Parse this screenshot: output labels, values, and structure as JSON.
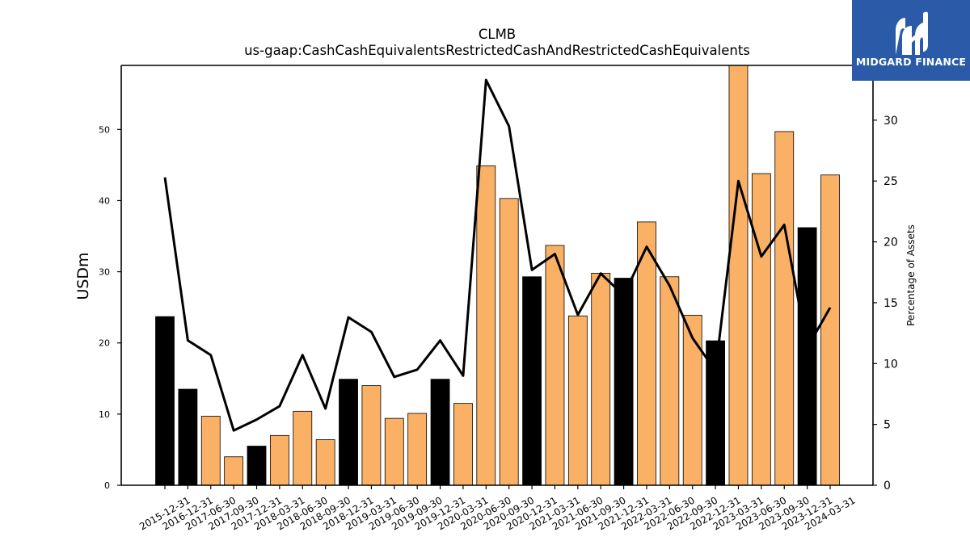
{
  "chart_data": {
    "type": "bar",
    "title": "CLMB",
    "subtitle": "us-gaap:CashCashEquivalentsRestrictedCashAndRestrictedCashEquivalents",
    "ylabel": "USDm",
    "y2label": "Percentage of Assets",
    "ylim": [
      0,
      59
    ],
    "y2lim": [
      0,
      34.5
    ],
    "yticks": [
      0,
      10,
      20,
      30,
      40,
      50
    ],
    "y2ticks": [
      0,
      5,
      10,
      15,
      20,
      25,
      30
    ],
    "categories": [
      "2015-12-31",
      "2016-12-31",
      "2017-06-30",
      "2017-09-30",
      "2017-12-31",
      "2018-03-31",
      "2018-06-30",
      "2018-09-30",
      "2018-12-31",
      "2019-03-31",
      "2019-06-30",
      "2019-09-30",
      "2019-12-31",
      "2020-03-31",
      "2020-06-30",
      "2020-09-30",
      "2020-12-31",
      "2021-03-31",
      "2021-06-30",
      "2021-09-30",
      "2021-12-31",
      "2022-03-31",
      "2022-06-30",
      "2022-09-30",
      "2022-12-31",
      "2023-03-31",
      "2023-06-30",
      "2023-09-30",
      "2023-12-31",
      "2024-03-31"
    ],
    "series": [
      {
        "role": "bars",
        "values": [
          23.7,
          13.5,
          9.7,
          4.0,
          5.5,
          7.0,
          10.4,
          6.4,
          14.9,
          14.0,
          9.4,
          10.1,
          14.9,
          11.5,
          44.9,
          40.3,
          29.3,
          33.7,
          23.8,
          29.8,
          29.1,
          37.0,
          29.3,
          23.9,
          20.3,
          59.0,
          43.8,
          49.7,
          36.2,
          43.6
        ]
      },
      {
        "role": "line",
        "axis": "right",
        "values": [
          25.3,
          11.9,
          10.7,
          4.5,
          5.4,
          6.5,
          10.7,
          6.3,
          13.8,
          12.6,
          8.9,
          9.5,
          11.9,
          9.0,
          33.3,
          29.5,
          17.7,
          19.0,
          14.0,
          17.4,
          15.6,
          19.6,
          16.4,
          12.1,
          9.4,
          25.0,
          18.8,
          21.4,
          11.3,
          14.6
        ]
      }
    ],
    "colors": {
      "annual_bar": "#000000",
      "quarter_bar": "#fbb165",
      "line": "#000000"
    },
    "annual_flags": [
      1,
      1,
      0,
      0,
      1,
      0,
      0,
      0,
      1,
      0,
      0,
      0,
      1,
      0,
      0,
      0,
      1,
      0,
      0,
      0,
      1,
      0,
      0,
      0,
      1,
      0,
      0,
      0,
      1,
      0
    ],
    "legend": "none",
    "grid": false
  },
  "logo": {
    "text": "MIDGARD FINANCE",
    "color": "#2b5aa8"
  }
}
